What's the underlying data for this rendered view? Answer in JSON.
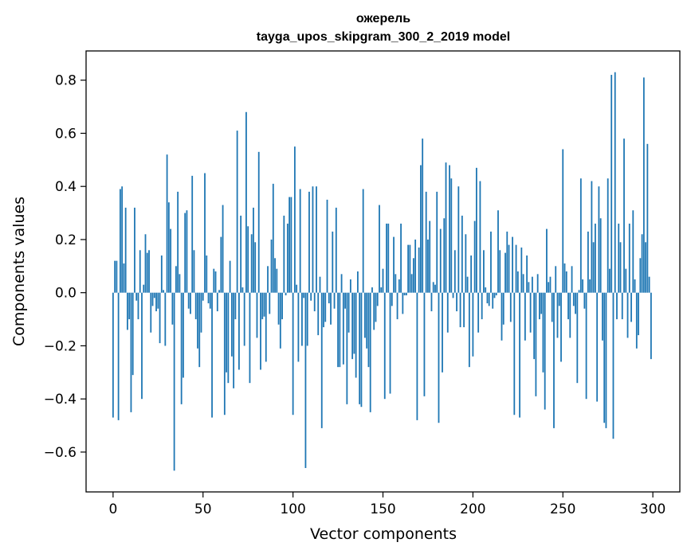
{
  "chart_data": {
    "type": "bar",
    "title": "ожерель",
    "subtitle": "tayga_upos_skipgram_300_2_2019 model",
    "xlabel": "Vector components",
    "ylabel": "Components values",
    "xlim": [
      -15,
      315
    ],
    "ylim": [
      -0.75,
      0.91
    ],
    "xticks": [
      0,
      50,
      100,
      150,
      200,
      250,
      300
    ],
    "xtick_labels": [
      "0",
      "50",
      "100",
      "150",
      "200",
      "250",
      "300"
    ],
    "yticks": [
      -0.6,
      -0.4,
      -0.2,
      0.0,
      0.2,
      0.4,
      0.6,
      0.8
    ],
    "ytick_labels": [
      "−0.6",
      "−0.4",
      "−0.2",
      "0.0",
      "0.2",
      "0.4",
      "0.6",
      "0.8"
    ],
    "grid": false,
    "bar_color": "#1f77b4",
    "values": [
      -0.47,
      0.12,
      0.12,
      -0.48,
      0.39,
      0.4,
      0.11,
      0.32,
      -0.14,
      -0.1,
      -0.45,
      -0.31,
      0.32,
      -0.03,
      -0.1,
      0.16,
      -0.4,
      0.03,
      0.22,
      0.15,
      0.16,
      -0.15,
      -0.05,
      -0.02,
      -0.07,
      -0.06,
      -0.19,
      0.14,
      0.01,
      -0.2,
      0.52,
      0.34,
      0.24,
      -0.12,
      -0.67,
      0.1,
      0.38,
      0.07,
      -0.42,
      -0.32,
      0.3,
      0.31,
      -0.06,
      -0.08,
      0.44,
      0.16,
      -0.1,
      -0.21,
      -0.28,
      -0.15,
      -0.03,
      0.45,
      0.14,
      -0.04,
      -0.06,
      -0.47,
      0.09,
      0.08,
      -0.07,
      0.01,
      0.21,
      0.33,
      -0.46,
      -0.3,
      -0.34,
      0.12,
      -0.24,
      -0.36,
      -0.1,
      0.61,
      -0.29,
      0.29,
      0.02,
      -0.2,
      0.68,
      0.25,
      -0.34,
      0.22,
      0.32,
      0.19,
      -0.17,
      0.53,
      -0.29,
      -0.1,
      -0.09,
      -0.26,
      0.1,
      -0.08,
      0.2,
      0.41,
      0.13,
      0.09,
      -0.12,
      -0.21,
      -0.1,
      0.29,
      -0.01,
      0.26,
      0.36,
      0.36,
      -0.46,
      0.55,
      0.03,
      -0.26,
      0.39,
      -0.2,
      -0.02,
      -0.66,
      -0.2,
      0.38,
      -0.03,
      0.4,
      -0.07,
      0.4,
      -0.16,
      0.06,
      -0.51,
      -0.13,
      -0.11,
      0.35,
      -0.04,
      -0.12,
      0.23,
      -0.06,
      0.32,
      -0.28,
      -0.28,
      0.07,
      -0.27,
      -0.06,
      -0.42,
      -0.15,
      0.05,
      -0.25,
      -0.23,
      -0.32,
      0.08,
      -0.42,
      -0.43,
      0.39,
      -0.17,
      -0.21,
      -0.28,
      -0.45,
      0.02,
      -0.14,
      -0.11,
      -0.05,
      0.33,
      0.02,
      0.09,
      -0.4,
      0.26,
      0.26,
      -0.38,
      -0.05,
      0.21,
      0.07,
      -0.1,
      0.05,
      0.26,
      -0.08,
      -0.01,
      -0.01,
      0.18,
      0.18,
      0.07,
      0.13,
      0.2,
      -0.48,
      0.17,
      0.48,
      0.58,
      -0.39,
      0.38,
      0.2,
      0.27,
      -0.07,
      0.04,
      0.03,
      0.38,
      -0.49,
      0.24,
      -0.3,
      0.28,
      0.49,
      -0.15,
      0.48,
      0.43,
      -0.02,
      0.16,
      -0.07,
      0.4,
      -0.13,
      0.29,
      -0.13,
      0.22,
      0.06,
      -0.28,
      0.14,
      -0.24,
      0.27,
      0.47,
      -0.15,
      0.42,
      -0.1,
      0.16,
      0.02,
      -0.04,
      -0.05,
      0.23,
      -0.06,
      -0.02,
      -0.01,
      0.31,
      0.16,
      -0.18,
      -0.12,
      0.15,
      0.23,
      0.18,
      -0.11,
      0.21,
      -0.46,
      0.18,
      0.08,
      -0.47,
      0.17,
      0.07,
      -0.18,
      0.14,
      0.04,
      -0.15,
      0.06,
      -0.25,
      -0.39,
      0.07,
      -0.1,
      -0.08,
      -0.3,
      -0.44,
      0.24,
      0.04,
      0.06,
      -0.11,
      -0.51,
      0.1,
      -0.17,
      -0.05,
      -0.26,
      0.54,
      0.11,
      0.08,
      -0.1,
      -0.17,
      0.1,
      -0.05,
      -0.08,
      -0.34,
      0.01,
      0.43,
      0.05,
      -0.06,
      -0.4,
      0.23,
      0.05,
      0.42,
      0.19,
      0.26,
      -0.41,
      0.4,
      0.28,
      -0.18,
      -0.49,
      -0.51,
      0.43,
      0.09,
      0.82,
      -0.55,
      0.83,
      -0.1,
      0.26,
      0.19,
      -0.1,
      0.58,
      0.09,
      -0.17,
      0.26,
      -0.11,
      0.31,
      0.05,
      -0.21,
      -0.16,
      0.13,
      0.22,
      0.81,
      0.19,
      0.56,
      0.06,
      -0.25
    ]
  }
}
